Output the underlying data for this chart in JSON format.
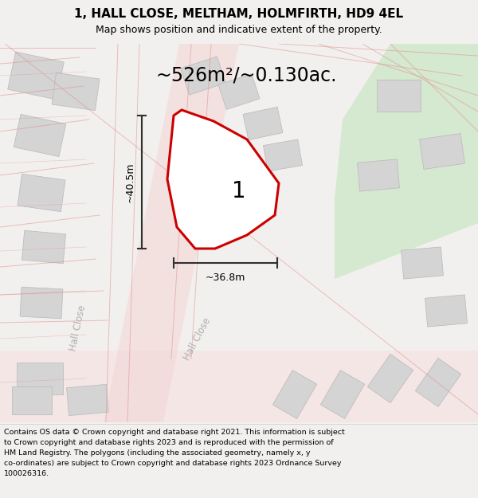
{
  "title_line1": "1, HALL CLOSE, MELTHAM, HOLMFIRTH, HD9 4EL",
  "title_line2": "Map shows position and indicative extent of the property.",
  "area_text": "~526m²/~0.130ac.",
  "dim_vertical": "~40.5m",
  "dim_horizontal": "~36.8m",
  "plot_number": "1",
  "footer_lines": [
    "Contains OS data © Crown copyright and database right 2021. This information is subject",
    "to Crown copyright and database rights 2023 and is reproduced with the permission of",
    "HM Land Registry. The polygons (including the associated geometry, namely x, y",
    "co-ordinates) are subject to Crown copyright and database rights 2023 Ordnance Survey",
    "100026316."
  ],
  "bg_color": "#f2f0ee",
  "road_color": "#f5d8d8",
  "road_line_color": "#e09090",
  "building_color": "#d4d4d4",
  "building_edge": "#b8b8b8",
  "plot_fill": "#ffffff",
  "plot_edge": "#cc0000",
  "dimension_color": "#303030",
  "text_color": "#000000",
  "footer_bg": "#ffffff",
  "green_area_color": "#d5e8d0",
  "hall_close_color": "#b0b0b0"
}
